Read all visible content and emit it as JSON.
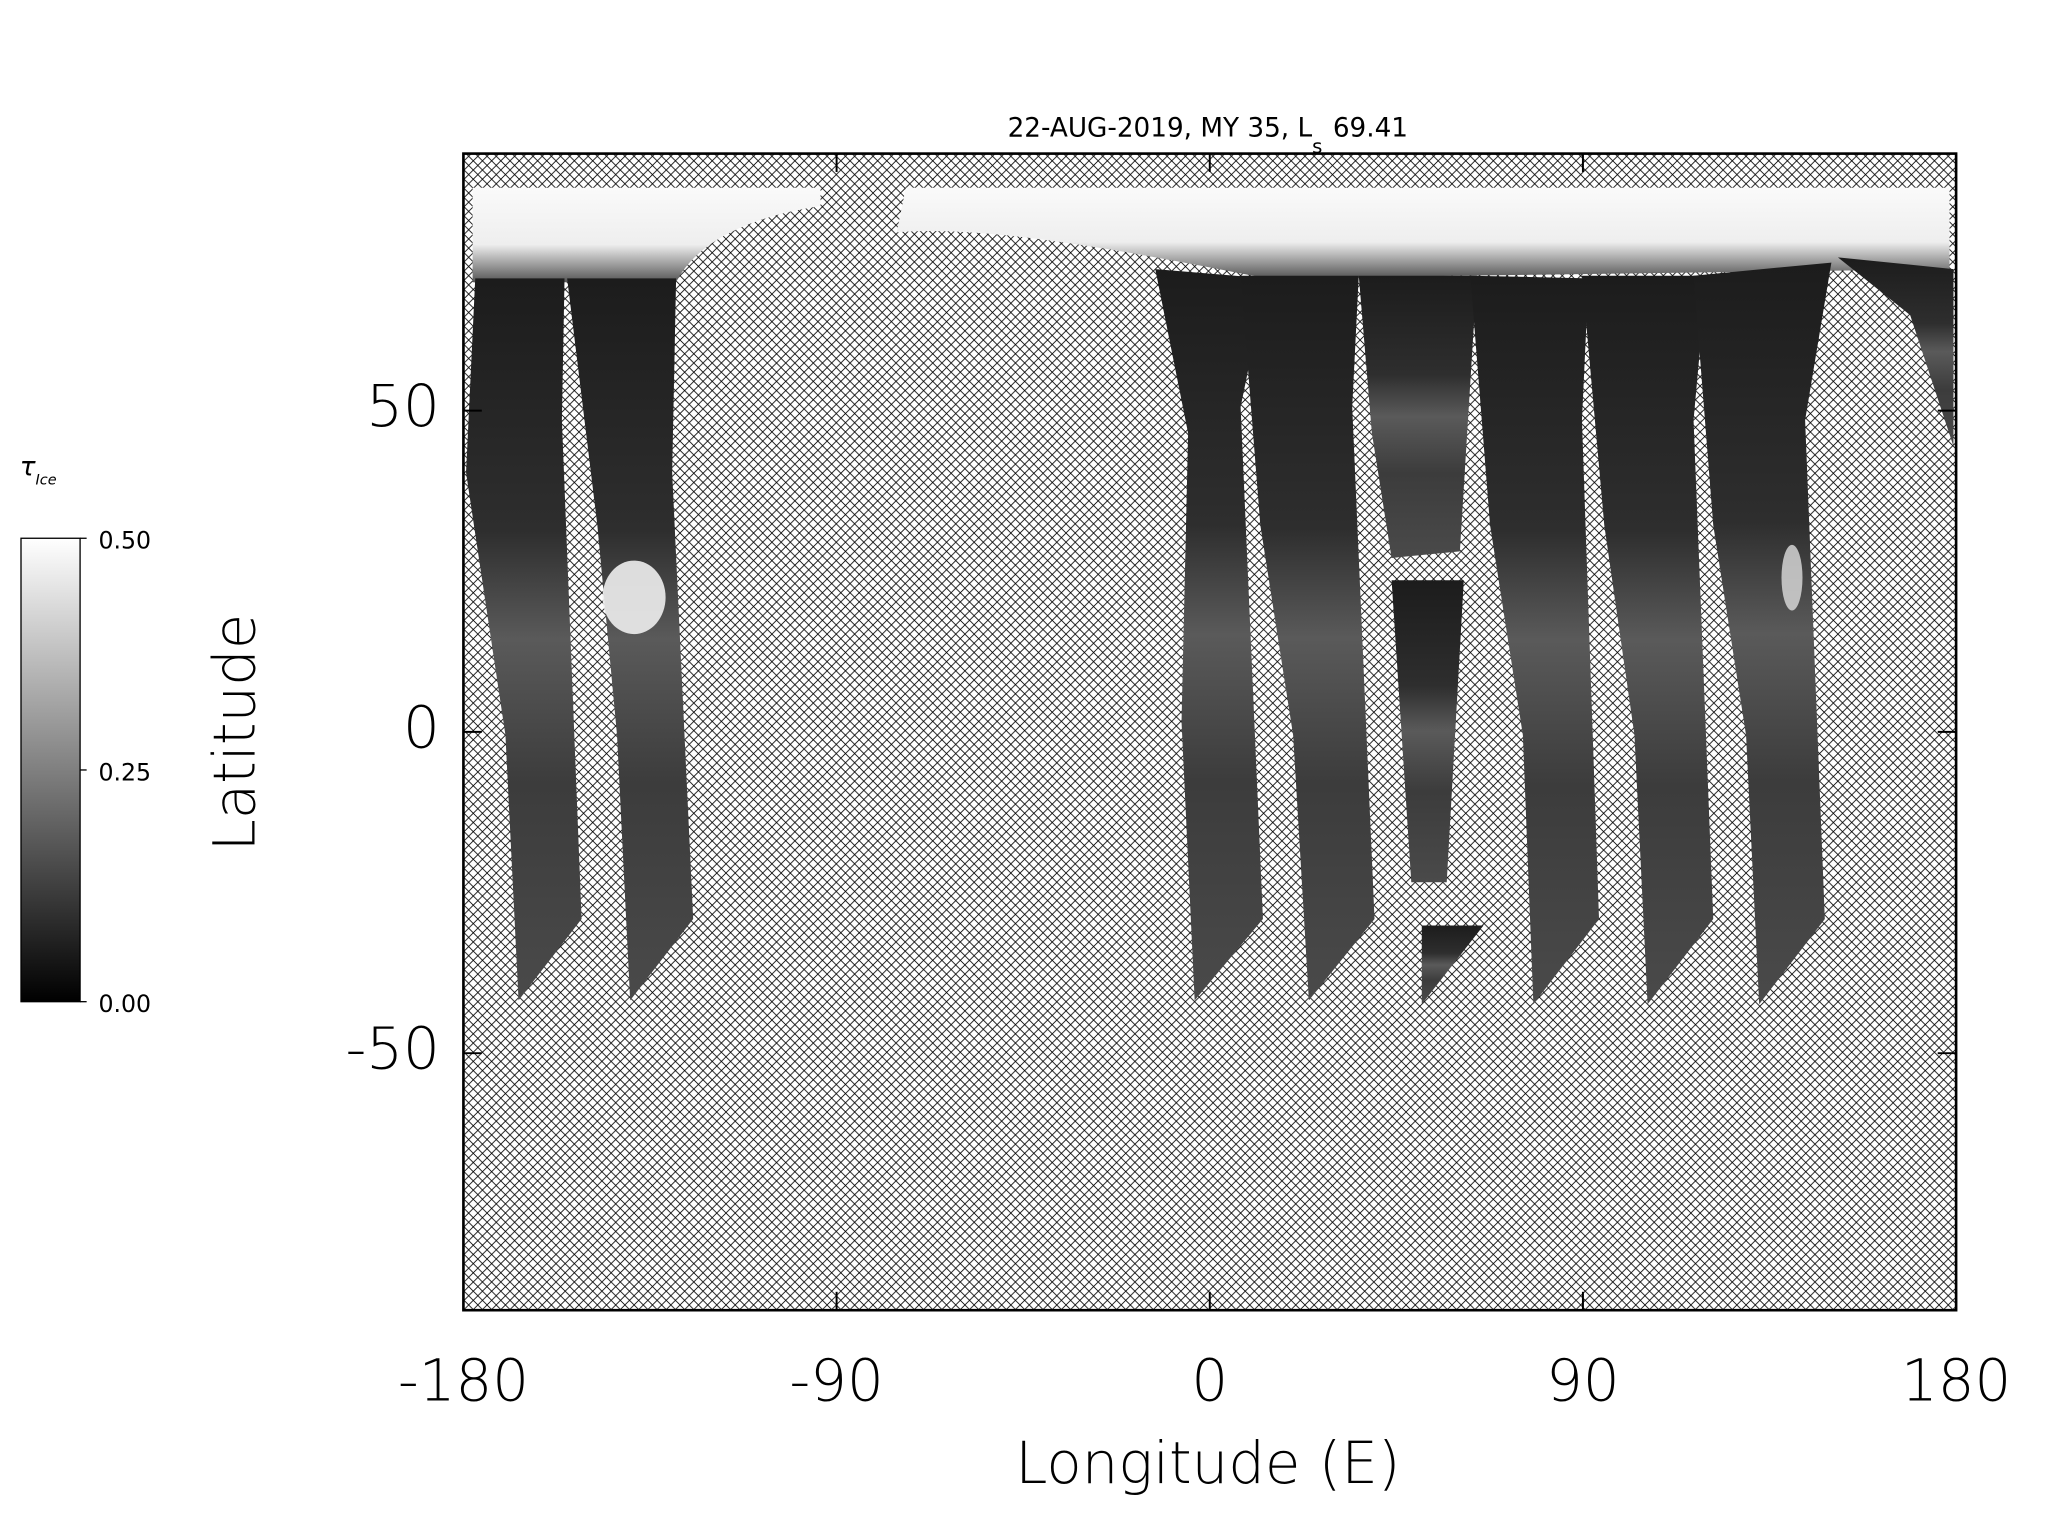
{
  "chart_data": {
    "type": "map",
    "title_parts": [
      "22-AUG-2019, MY 35,  L",
      "s",
      "69.41"
    ],
    "xlabel": "Longitude (E)",
    "ylabel": "Latitude",
    "xlim": [
      -180,
      180
    ],
    "ylim": [
      -90,
      90
    ],
    "xticks": [
      -180,
      -90,
      0,
      90,
      180
    ],
    "yticks": [
      -50,
      0,
      50
    ],
    "colorbar": {
      "label": "τ",
      "label_sub": "Ice",
      "lim": [
        0,
        0.5
      ],
      "ticks": [
        {
          "value": 0,
          "label": "0.00"
        },
        {
          "value": 0.25,
          "label": "0.25"
        },
        {
          "value": 0.5,
          "label": "0.50"
        }
      ]
    }
  }
}
